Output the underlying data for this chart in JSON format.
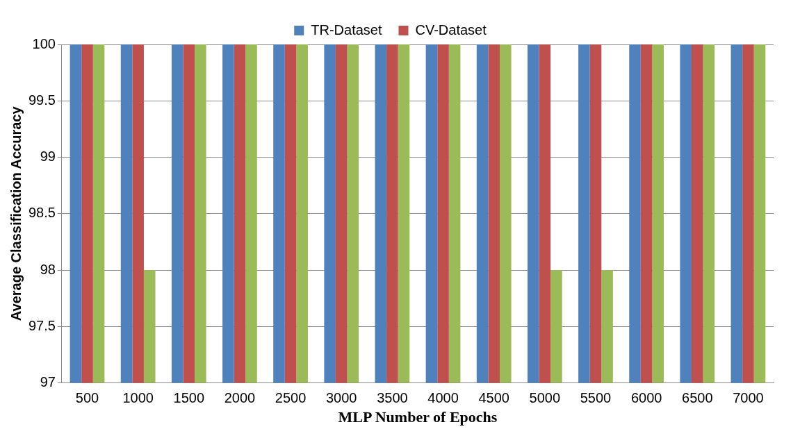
{
  "chart_data": {
    "type": "bar",
    "xlabel": "MLP Number of Epochs",
    "ylabel": "Average Classification Accuracy",
    "categories": [
      "500",
      "1000",
      "1500",
      "2000",
      "2500",
      "3000",
      "3500",
      "4000",
      "4500",
      "5000",
      "5500",
      "6000",
      "6500",
      "7000"
    ],
    "series": [
      {
        "name": "TR-Dataset",
        "color": "#4f81bd",
        "values": [
          100,
          100,
          100,
          100,
          100,
          100,
          100,
          100,
          100,
          100,
          100,
          100,
          100,
          100
        ]
      },
      {
        "name": "CV-Dataset",
        "color": "#c0504d",
        "values": [
          100,
          100,
          100,
          100,
          100,
          100,
          100,
          100,
          100,
          100,
          100,
          100,
          100,
          100
        ]
      },
      {
        "color": "#9bbb59",
        "values": [
          100,
          98,
          100,
          100,
          100,
          100,
          100,
          100,
          100,
          98,
          98,
          100,
          100,
          100
        ]
      }
    ],
    "ylim": [
      97,
      100
    ],
    "yticks": [
      97,
      97.5,
      98,
      98.5,
      99,
      99.5,
      100
    ],
    "grid": "y",
    "legend": "top"
  }
}
